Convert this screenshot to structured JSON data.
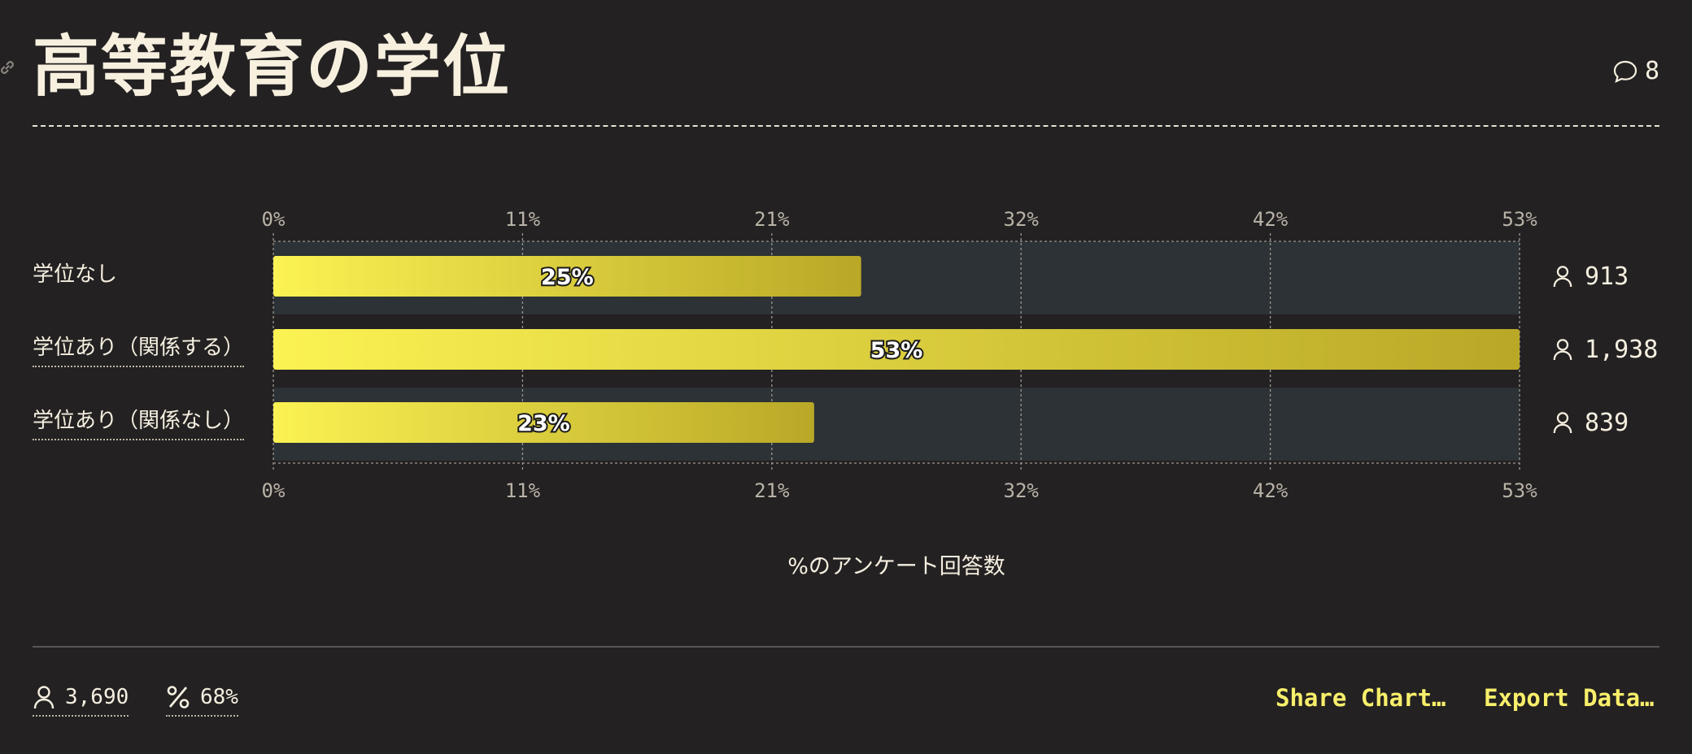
{
  "header": {
    "title": "高等教育の学位",
    "comment_count": "8"
  },
  "colors": {
    "background": "#242122",
    "bar_start": "#fbf253",
    "bar_end": "#b9a827",
    "track": "#2c3236",
    "text": "#f5efe0",
    "accent": "#f7ef6a"
  },
  "chart_data": {
    "type": "bar",
    "orientation": "horizontal",
    "categories": [
      "学位なし",
      "学位あり（関係する）",
      "学位あり（関係なし）"
    ],
    "values": [
      25,
      53,
      23
    ],
    "value_labels": [
      "25%",
      "53%",
      "23%"
    ],
    "respondents": [
      "913",
      "1,938",
      "839"
    ],
    "xlim": [
      0,
      53
    ],
    "ticks": [
      "0%",
      "11%",
      "21%",
      "32%",
      "42%",
      "53%"
    ],
    "tick_values": [
      0,
      10.6,
      21.2,
      31.8,
      42.4,
      53
    ],
    "xlabel": "%のアンケート回答数",
    "grid": true
  },
  "footer": {
    "total_respondents": "3,690",
    "response_rate": "68%",
    "share_label": "Share Chart…",
    "export_label": "Export Data…"
  }
}
